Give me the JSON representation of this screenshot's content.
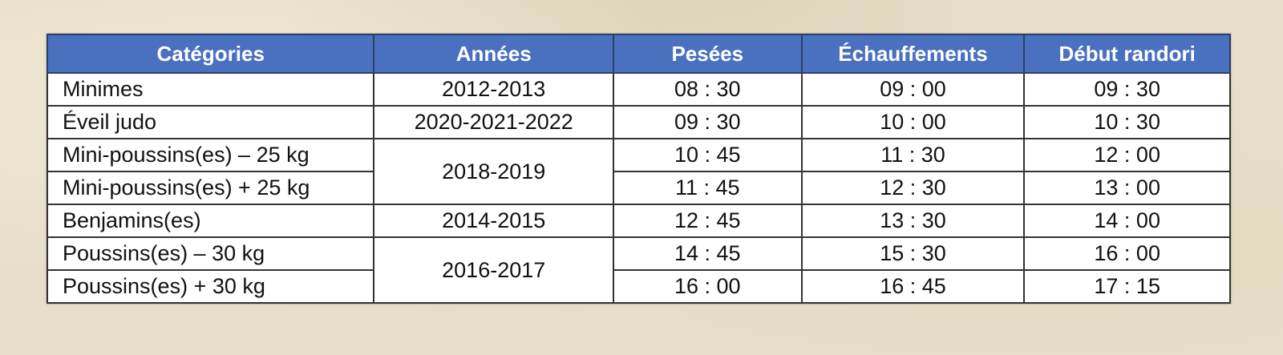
{
  "colors": {
    "header_bg": "#4a70c0",
    "header_text": "#ffffff"
  },
  "headers": [
    "Catégories",
    "Années",
    "Pesées",
    "Échauffements",
    "Début randori"
  ],
  "rows": [
    {
      "cat": "Minimes",
      "years": "2012-2013",
      "pesees": "08 : 30",
      "echauff": "09 : 00",
      "randori": "09 : 30"
    },
    {
      "cat": "Éveil judo",
      "years": "2020-2021-2022",
      "pesees": "09 : 30",
      "echauff": "10 : 00",
      "randori": "10 : 30"
    },
    {
      "cat": "Mini-poussins(es) – 25 kg",
      "years": "2018-2019",
      "pesees": "10 : 45",
      "echauff": "11 : 30",
      "randori": "12 : 00"
    },
    {
      "cat": "Mini-poussins(es) + 25 kg",
      "pesees": "11 : 45",
      "echauff": "12 : 30",
      "randori": "13 : 00"
    },
    {
      "cat": "Benjamins(es)",
      "years": "2014-2015",
      "pesees": "12 : 45",
      "echauff": "13 : 30",
      "randori": "14 : 00"
    },
    {
      "cat": "Poussins(es) – 30 kg",
      "years": "2016-2017",
      "pesees": "14 : 45",
      "echauff": "15 : 30",
      "randori": "16 : 00"
    },
    {
      "cat": "Poussins(es) + 30 kg",
      "pesees": "16 : 00",
      "echauff": "16 : 45",
      "randori": "17 : 15"
    }
  ]
}
